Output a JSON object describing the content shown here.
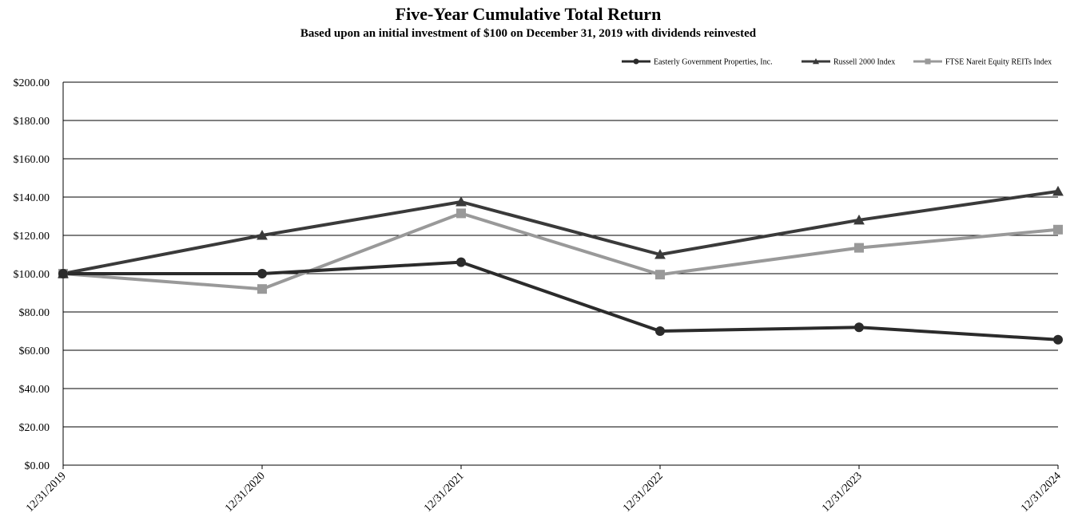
{
  "chart_data": {
    "type": "line",
    "title": "Five-Year Cumulative Total Return",
    "subtitle": "Based upon an initial investment of $100 on December 31, 2019 with dividends reinvested",
    "xlabel": "",
    "ylabel": "",
    "categories": [
      "12/31/2019",
      "12/31/2020",
      "12/31/2021",
      "12/31/2022",
      "12/31/2023",
      "12/31/2024"
    ],
    "ylim": [
      0,
      200
    ],
    "yticks": [
      0,
      20,
      40,
      60,
      80,
      100,
      120,
      140,
      160,
      180,
      200
    ],
    "ytick_labels": [
      "$0.00",
      "$20.00",
      "$40.00",
      "$60.00",
      "$80.00",
      "$100.00",
      "$120.00",
      "$140.00",
      "$160.00",
      "$180.00",
      "$200.00"
    ],
    "grid": true,
    "legend_position": "top-right",
    "series": [
      {
        "name": "Easterly Government Properties, Inc.",
        "values": [
          100,
          100,
          106,
          70,
          72,
          65.5
        ],
        "color": "#2b2b2b",
        "marker": "circle"
      },
      {
        "name": "Russell 2000 Index",
        "values": [
          100,
          120,
          137.5,
          110,
          128,
          143
        ],
        "color": "#3a3a3a",
        "marker": "triangle"
      },
      {
        "name": "FTSE Nareit Equity REITs Index",
        "values": [
          100,
          92,
          131.5,
          99.5,
          113.5,
          123
        ],
        "color": "#999999",
        "marker": "square"
      }
    ]
  }
}
